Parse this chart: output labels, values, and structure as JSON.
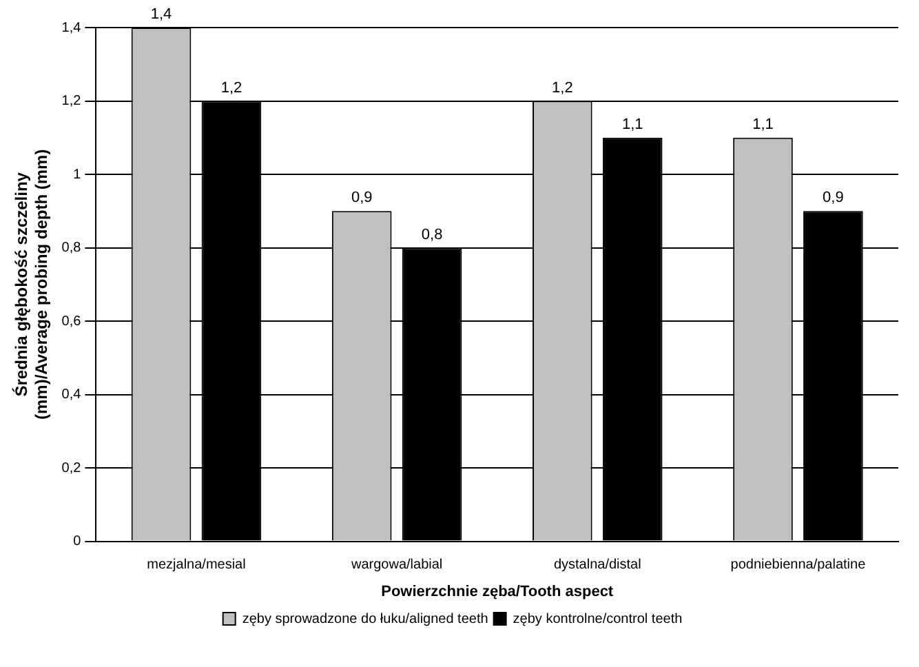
{
  "chart_data": {
    "type": "bar",
    "xlabel": "Powierzchnie zęba/Tooth aspect",
    "ylabel": "Średnia głębokość szczeliny (mm)/Average probing depth (mm)",
    "categories": [
      "mezjalna/mesial",
      "wargowa/labial",
      "dystalna/distal",
      "podniebienna/palatine"
    ],
    "series": [
      {
        "name": "zęby sprowadzone do łuku/aligned teeth",
        "color": "#c0c0c0",
        "values": [
          1.4,
          0.9,
          1.2,
          1.1
        ],
        "value_labels": [
          "1,4",
          "0,9",
          "1,2",
          "1,1"
        ]
      },
      {
        "name": "zęby kontrolne/control teeth",
        "color": "#000000",
        "values": [
          1.2,
          0.8,
          1.1,
          0.9
        ],
        "value_labels": [
          "1,2",
          "0,8",
          "1,1",
          "0,9"
        ]
      }
    ],
    "ylim": [
      0,
      1.4
    ],
    "yticks": [
      0,
      {
        "value": 0.2,
        "label": "0,2"
      },
      {
        "value": 0.4,
        "label": "0,4"
      },
      {
        "value": 0.6,
        "label": "0,6"
      },
      {
        "value": 0.8,
        "label": "0,8"
      },
      1,
      {
        "value": 1.2,
        "label": "1,2"
      },
      {
        "value": 1.4,
        "label": "1,4"
      }
    ],
    "grid": "y",
    "legend": "bottom"
  }
}
